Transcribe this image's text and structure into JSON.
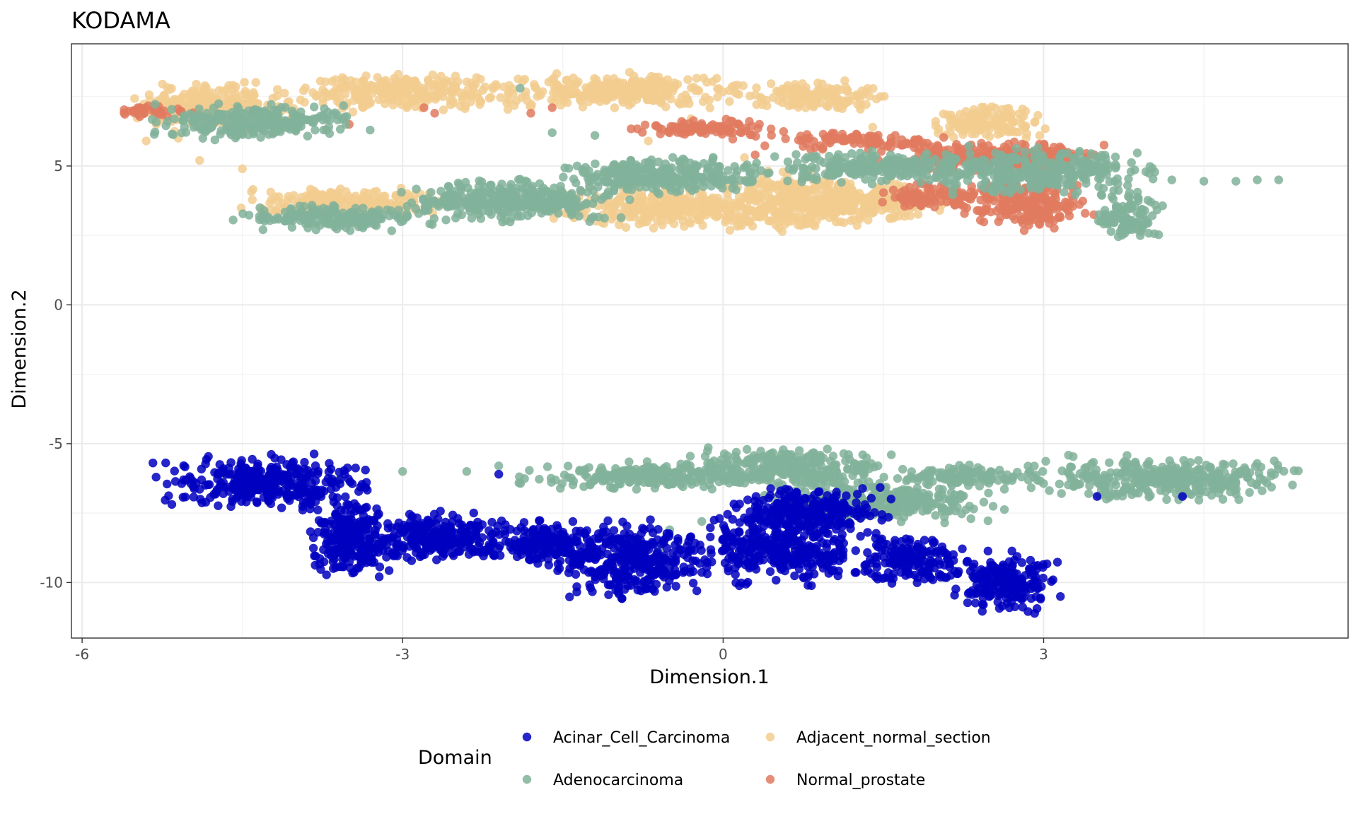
{
  "chart_data": {
    "type": "scatter",
    "title": "KODAMA",
    "xlabel": "Dimension.1",
    "ylabel": "Dimension.2",
    "xlim": [
      -6.1,
      5.85
    ],
    "ylim": [
      -12,
      9.4
    ],
    "x_ticks": [
      -6,
      -3,
      0,
      3
    ],
    "y_ticks": [
      -10,
      -5,
      0,
      5
    ],
    "x_tick_labels": [
      "-6",
      "-3",
      "0",
      "3"
    ],
    "y_tick_labels": [
      "-10",
      "-5",
      "0",
      "5"
    ],
    "grid": true,
    "legend": {
      "title": "Domain",
      "position": "bottom",
      "entries": [
        {
          "label": "Acinar_Cell_Carcinoma",
          "color": "#0000BF"
        },
        {
          "label": "Adjacent_normal_section",
          "color": "#F2CC8F"
        },
        {
          "label": "Adenocarcinoma",
          "color": "#81B29A"
        },
        {
          "label": "Normal_prostate",
          "color": "#E07A5F"
        }
      ]
    },
    "series": [
      {
        "name": "Acinar_Cell_Carcinoma",
        "color": "#0000BF",
        "clusters": [
          {
            "x": [
              -5.2,
              -3.3
            ],
            "y": [
              -7.3,
              -5.5
            ]
          },
          {
            "x": [
              -3.9,
              -3.1
            ],
            "y": [
              -9.8,
              -7.0
            ]
          },
          {
            "x": [
              -3.3,
              -2.0
            ],
            "y": [
              -9.2,
              -7.5
            ]
          },
          {
            "x": [
              -2.2,
              -1.2
            ],
            "y": [
              -9.4,
              -7.8
            ]
          },
          {
            "x": [
              -1.5,
              -0.2
            ],
            "y": [
              -10.5,
              -7.8
            ]
          },
          {
            "x": [
              -0.2,
              1.3
            ],
            "y": [
              -10.0,
              -7.6
            ]
          },
          {
            "x": [
              1.3,
              2.2
            ],
            "y": [
              -10.0,
              -8.3
            ]
          },
          {
            "x": [
              2.2,
              3.1
            ],
            "y": [
              -11.0,
              -9.0
            ]
          },
          {
            "x": [
              0.1,
              1.5
            ],
            "y": [
              -8.2,
              -6.6
            ]
          }
        ],
        "points": [
          {
            "x": -2.1,
            "y": -6.1
          },
          {
            "x": 3.5,
            "y": -6.9
          },
          {
            "x": 4.3,
            "y": -6.9
          }
        ]
      },
      {
        "name": "Adjacent_normal_section",
        "color": "#F2CC8F",
        "clusters": [
          {
            "x": [
              -5.5,
              -4.0
            ],
            "y": [
              6.3,
              7.9
            ]
          },
          {
            "x": [
              -4.0,
              -2.0
            ],
            "y": [
              7.0,
              8.3
            ]
          },
          {
            "x": [
              -2.0,
              0.2
            ],
            "y": [
              7.1,
              8.3
            ]
          },
          {
            "x": [
              0.2,
              1.5
            ],
            "y": [
              7.0,
              8.0
            ]
          },
          {
            "x": [
              1.9,
              3.0
            ],
            "y": [
              6.0,
              7.2
            ]
          },
          {
            "x": [
              -4.5,
              -2.5
            ],
            "y": [
              3.2,
              4.2
            ]
          },
          {
            "x": [
              -1.5,
              0.5
            ],
            "y": [
              2.8,
              4.2
            ]
          },
          {
            "x": [
              0.0,
              1.3
            ],
            "y": [
              2.7,
              4.8
            ]
          },
          {
            "x": [
              0.8,
              2.0
            ],
            "y": [
              3.0,
              4.5
            ]
          }
        ],
        "points": [
          {
            "x": -5.4,
            "y": 5.9
          },
          {
            "x": -5.1,
            "y": 6.0
          },
          {
            "x": -4.9,
            "y": 5.2
          },
          {
            "x": -4.5,
            "y": 4.9
          },
          {
            "x": 0.2,
            "y": 5.3
          },
          {
            "x": 1.4,
            "y": 6.4
          },
          {
            "x": -0.3,
            "y": 6.7
          },
          {
            "x": -0.7,
            "y": 5.9
          }
        ]
      },
      {
        "name": "Adenocarcinoma",
        "color": "#81B29A",
        "clusters": [
          {
            "x": [
              -5.3,
              -3.4
            ],
            "y": [
              6.0,
              7.2
            ]
          },
          {
            "x": [
              -4.5,
              -2.8
            ],
            "y": [
              2.7,
              3.6
            ]
          },
          {
            "x": [
              -3.0,
              -1.0
            ],
            "y": [
              3.0,
              4.5
            ]
          },
          {
            "x": [
              -1.5,
              0.5
            ],
            "y": [
              4.0,
              5.3
            ]
          },
          {
            "x": 0.5,
            "y": [
              4.4,
              5.5
            ],
            "x2": 2.5
          },
          {
            "x": [
              2.0,
              4.0
            ],
            "y": [
              4.0,
              5.6
            ]
          },
          {
            "x": [
              3.5,
              4.1
            ],
            "y": [
              2.4,
              4.0
            ]
          },
          {
            "x": [
              -1.8,
              0.5
            ],
            "y": [
              -6.6,
              -5.7
            ]
          },
          {
            "x": [
              -0.3,
              1.5
            ],
            "y": [
              -6.6,
              -5.2
            ]
          },
          {
            "x": [
              0.5,
              2.5
            ],
            "y": [
              -7.8,
              -6.4
            ]
          },
          {
            "x": [
              1.5,
              3.0
            ],
            "y": [
              -6.5,
              -5.8
            ]
          },
          {
            "x": [
              3.0,
              5.3
            ],
            "y": [
              -7.0,
              -5.5
            ]
          }
        ],
        "points": [
          {
            "x": 4.2,
            "y": 4.5
          },
          {
            "x": 4.5,
            "y": 4.45
          },
          {
            "x": 4.8,
            "y": 4.45
          },
          {
            "x": 5.0,
            "y": 4.5
          },
          {
            "x": 5.2,
            "y": 4.5
          },
          {
            "x": -4.7,
            "y": -6.1
          },
          {
            "x": -4.5,
            "y": -6.3
          },
          {
            "x": -3.6,
            "y": -6.3
          },
          {
            "x": -3.0,
            "y": -6.0
          },
          {
            "x": -2.4,
            "y": -6.0
          },
          {
            "x": -2.1,
            "y": -5.8
          },
          {
            "x": -0.9,
            "y": -9.1
          },
          {
            "x": -0.6,
            "y": -8.8
          },
          {
            "x": -0.5,
            "y": -8.1
          },
          {
            "x": -0.2,
            "y": -7.8
          },
          {
            "x": -1.6,
            "y": 6.2
          },
          {
            "x": -1.2,
            "y": 6.1
          },
          {
            "x": -1.9,
            "y": 7.8
          }
        ]
      },
      {
        "name": "Normal_prostate",
        "color": "#E07A5F",
        "clusters": [
          {
            "x": [
              -5.6,
              -5.0
            ],
            "y": [
              6.8,
              7.2
            ]
          },
          {
            "x": [
              -0.8,
              0.5
            ],
            "y": [
              6.0,
              6.7
            ]
          },
          {
            "x": [
              0.5,
              2.0
            ],
            "y": [
              5.6,
              6.2
            ]
          },
          {
            "x": [
              1.5,
              3.5
            ],
            "y": [
              4.8,
              5.9
            ]
          },
          {
            "x": [
              2.3,
              3.4
            ],
            "y": [
              2.8,
              4.6
            ]
          },
          {
            "x": [
              1.5,
              2.5
            ],
            "y": [
              3.4,
              4.4
            ]
          }
        ],
        "points": [
          {
            "x": -2.8,
            "y": 7.1
          },
          {
            "x": -2.7,
            "y": 6.9
          },
          {
            "x": -1.8,
            "y": 6.9
          },
          {
            "x": -1.6,
            "y": 7.1
          },
          {
            "x": -4.4,
            "y": 7.0
          },
          {
            "x": -3.5,
            "y": 6.5
          },
          {
            "x": 0.3,
            "y": 5.4
          },
          {
            "x": -0.1,
            "y": 4.6
          },
          {
            "x": 1.0,
            "y": 5.0
          }
        ]
      }
    ]
  }
}
